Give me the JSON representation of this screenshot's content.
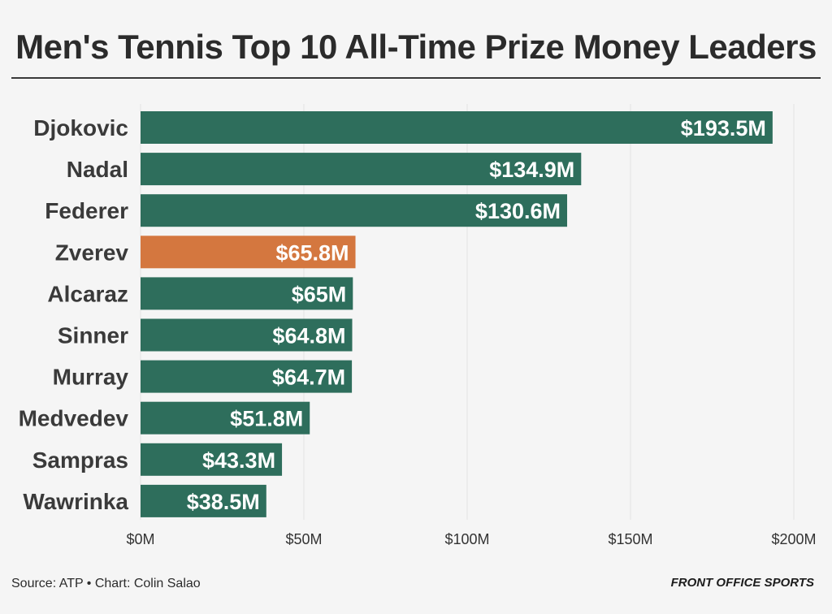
{
  "chart_data": {
    "type": "bar",
    "orientation": "horizontal",
    "title": "Men's Tennis Top 10 All-Time Prize Money Leaders",
    "categories": [
      "Djokovic",
      "Nadal",
      "Federer",
      "Zverev",
      "Alcaraz",
      "Sinner",
      "Murray",
      "Medvedev",
      "Sampras",
      "Wawrinka"
    ],
    "values": [
      193.5,
      134.9,
      130.6,
      65.8,
      65,
      64.8,
      64.7,
      51.8,
      43.3,
      38.5
    ],
    "value_labels": [
      "$193.5M",
      "$134.9M",
      "$130.6M",
      "$65.8M",
      "$65M",
      "$64.8M",
      "$64.7M",
      "$51.8M",
      "$43.3M",
      "$38.5M"
    ],
    "highlight": "Zverev",
    "xlim": [
      0,
      200
    ],
    "xticks": [
      0,
      50,
      100,
      150,
      200
    ],
    "xtick_labels": [
      "$0M",
      "$50M",
      "$100M",
      "$150M",
      "$200M"
    ],
    "grid": true,
    "colors": {
      "bar": "#2e6e5c",
      "highlight": "#d4773f"
    }
  },
  "footer": {
    "source": "Source: ATP • Chart: Colin Salao",
    "brand": "FRONT OFFICE SPORTS"
  }
}
